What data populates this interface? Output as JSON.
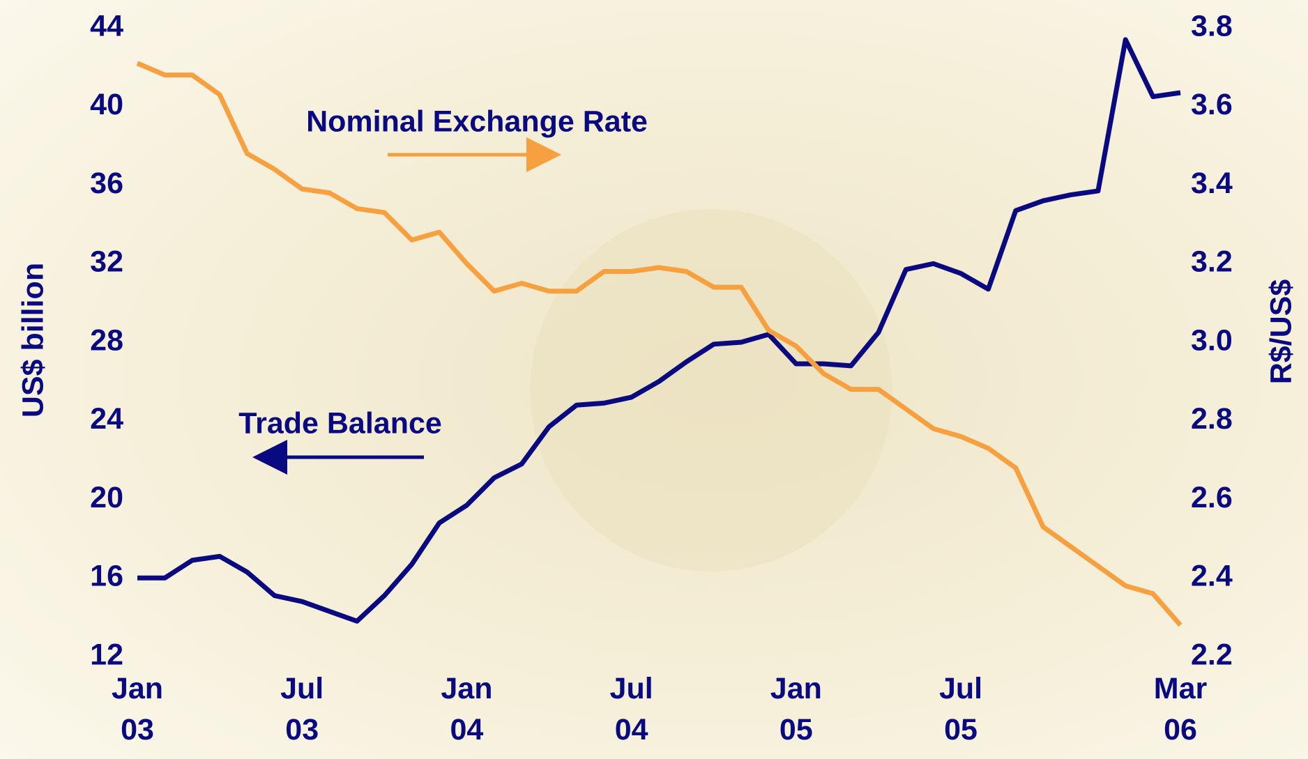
{
  "chart_data": {
    "type": "line",
    "y_label": "US$ billion",
    "y2_label": "R$/US$",
    "categories": [
      "Jan 03",
      null,
      null,
      null,
      null,
      null,
      "Jul 03",
      null,
      null,
      null,
      null,
      null,
      "Jan 04",
      null,
      null,
      null,
      null,
      null,
      "Jul 04",
      null,
      null,
      null,
      null,
      null,
      "Jan 05",
      null,
      null,
      null,
      null,
      null,
      "Jul 05",
      null,
      null,
      null,
      null,
      null,
      null,
      null,
      "Mar 06"
    ],
    "series": [
      {
        "name": "Trade Balance",
        "color": "#0a0a80",
        "axis": "y",
        "values": [
          16.0,
          16.0,
          16.9,
          17.1,
          16.3,
          15.1,
          14.8,
          14.3,
          13.8,
          15.1,
          16.7,
          18.8,
          19.7,
          21.1,
          21.8,
          23.7,
          24.8,
          24.9,
          25.2,
          26.0,
          27.0,
          27.9,
          28.0,
          28.4,
          26.9,
          26.9,
          26.8,
          28.5,
          31.7,
          32.0,
          31.5,
          30.7,
          34.7,
          35.2,
          35.5,
          35.7,
          43.4,
          40.5,
          40.7
        ]
      },
      {
        "name": "Nominal Exchange Rate",
        "color": "#f7a040",
        "axis": "y2",
        "values": [
          3.71,
          3.68,
          3.68,
          3.63,
          3.48,
          3.44,
          3.39,
          3.38,
          3.34,
          3.33,
          3.26,
          3.28,
          3.2,
          3.13,
          3.15,
          3.13,
          3.13,
          3.18,
          3.18,
          3.19,
          3.18,
          3.14,
          3.14,
          3.03,
          2.99,
          2.92,
          2.88,
          2.88,
          2.83,
          2.78,
          2.76,
          2.73,
          2.68,
          2.53,
          2.48,
          2.43,
          2.38,
          2.36,
          2.28
        ]
      }
    ],
    "ylim": [
      12,
      44
    ],
    "yticks": [
      12,
      16,
      20,
      24,
      28,
      32,
      36,
      40,
      44
    ],
    "y2lim": [
      2.2,
      3.8
    ],
    "y2ticks": [
      {
        "value": 2.2,
        "label": "2.2"
      },
      {
        "value": 2.4,
        "label": "2.4"
      },
      {
        "value": 2.6,
        "label": "2.6"
      },
      {
        "value": 2.8,
        "label": "2.8"
      },
      {
        "value": 3.0,
        "label": "3.0"
      },
      {
        "value": 3.2,
        "label": "3.2"
      },
      {
        "value": 3.4,
        "label": "3.4"
      },
      {
        "value": 3.6,
        "label": "3.6"
      },
      {
        "value": 3.8,
        "label": "3.8"
      }
    ]
  }
}
